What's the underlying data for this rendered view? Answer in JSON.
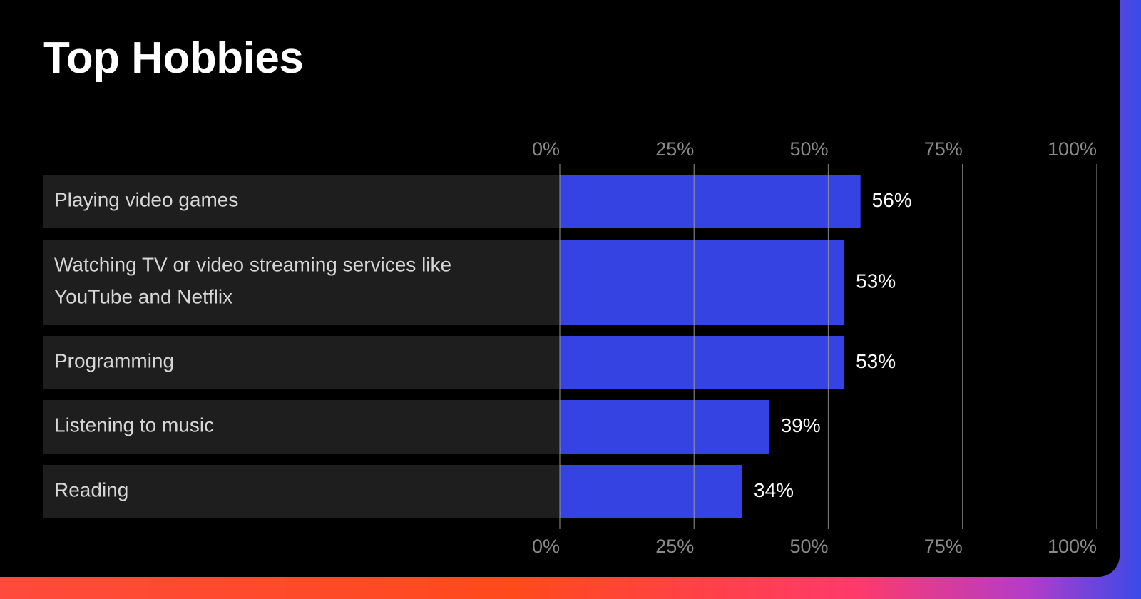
{
  "chart_data": {
    "type": "bar",
    "orientation": "horizontal",
    "title": "Top Hobbies",
    "categories": [
      [
        "Playing video games"
      ],
      [
        "Watching TV or video streaming services like",
        "YouTube and Netflix"
      ],
      [
        "Programming"
      ],
      [
        "Listening to music"
      ],
      [
        "Reading"
      ]
    ],
    "values": [
      56,
      53,
      53,
      39,
      34
    ],
    "value_labels": [
      "56%",
      "53%",
      "53%",
      "39%",
      "34%"
    ],
    "xlim": [
      0,
      100
    ],
    "ticks": [
      0,
      25,
      50,
      75,
      100
    ],
    "tick_labels": [
      "0%",
      "25%",
      "50%",
      "75%",
      "100%"
    ],
    "grid": true,
    "colors": {
      "bar": "#3543e3",
      "row_background": "#1e1e1e",
      "grid": "#9a9a9a"
    }
  }
}
